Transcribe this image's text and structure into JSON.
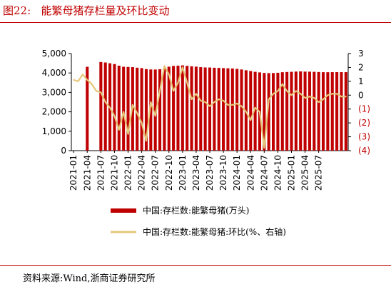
{
  "figure_title": "图22:   能繁母猪存栏量及环比变动",
  "source": "资料来源:Wind,浙商证券研究所",
  "chart_data": {
    "type": "bar+line",
    "x_tick_labels": [
      "2021-01",
      "2021-04",
      "2021-07",
      "2021-10",
      "2022-01",
      "2022-04",
      "2022-07",
      "2022-10",
      "2023-01",
      "2023-04",
      "2023-07",
      "2023-10",
      "2024-01",
      "2024-04",
      "2024-07",
      "2024-10",
      "2025-01",
      "2025-04",
      "2025-07"
    ],
    "left_axis": {
      "ylim": [
        0,
        5000
      ],
      "ticks": [
        "0",
        "1,000",
        "2,000",
        "3,000",
        "4,000",
        "5,000"
      ]
    },
    "right_axis": {
      "ylim": [
        -4,
        3
      ],
      "ticks": [
        "(4)",
        "(3)",
        "(2)",
        "(1)",
        "0",
        "1",
        "2",
        "3"
      ]
    },
    "colors": {
      "bar": "#c00000",
      "line": "#e6c77a",
      "negative_tick": "#c00000"
    },
    "series": [
      {
        "name": "中国:存栏数:能繁母猪(万头)",
        "kind": "bar",
        "axis": "left",
        "values": [
          null,
          null,
          null,
          4318,
          null,
          null,
          4564,
          4540,
          4500,
          4460,
          4375,
          4320,
          4310,
          4300,
          4270,
          4250,
          4200,
          4180,
          4177,
          4192,
          4240,
          4324,
          4362,
          4375,
          4390,
          4365,
          4343,
          4325,
          4300,
          4284,
          4280,
          4268,
          4260,
          4250,
          4240,
          4230,
          4210,
          4180,
          4140,
          4100,
          4060,
          4030,
          4000,
          3992,
          3996,
          4010,
          4038,
          4050,
          4060,
          4073,
          4080,
          4070,
          4066,
          4060,
          4050,
          4040,
          4039,
          4042,
          4043,
          4043,
          4042
        ]
      },
      {
        "name": "中国:存栏数:能繁母猪:环比(%、右轴)",
        "kind": "line",
        "axis": "right",
        "values": [
          1.1,
          1.0,
          1.5,
          1.1,
          0.8,
          0.3,
          0.2,
          -0.5,
          -0.9,
          -1.5,
          -2.5,
          -1.2,
          -2.8,
          -0.7,
          -1.3,
          -2.0,
          -3.3,
          -0.5,
          -1.5,
          0.3,
          2.1,
          1.5,
          0.3,
          0.9,
          2.0,
          0.9,
          -0.3,
          0.1,
          -0.4,
          -0.5,
          -0.8,
          -0.5,
          -0.3,
          -0.4,
          -0.7,
          -0.7,
          -0.6,
          -0.8,
          -1.2,
          -1.8,
          -0.9,
          -1.2,
          -3.8,
          -0.3,
          0.1,
          0.3,
          0.8,
          0.3,
          0.0,
          0.3,
          0.1,
          -0.2,
          -0.1,
          -0.2,
          -0.5,
          -0.3,
          0.0,
          0.1,
          0.1,
          -0.1,
          -0.1
        ]
      }
    ],
    "legend_position": "bottom"
  }
}
